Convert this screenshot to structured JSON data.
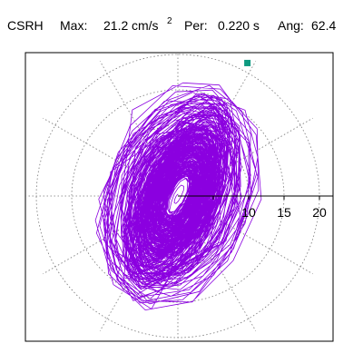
{
  "header": {
    "station": "CSRH",
    "max_label": "Max:",
    "max_value": "21.2",
    "max_unit": "cm/s",
    "max_unit_exp": "2",
    "per_label": "Per:",
    "per_value": "0.220 s",
    "ang_label": "Ang:",
    "ang_value": "62.4"
  },
  "colors": {
    "trace": "#8B00E0",
    "marker": "#0E9A80",
    "grid": "#777777",
    "axis": "#000000"
  },
  "chart_data": {
    "type": "polar-orbit",
    "rings": [
      5,
      10,
      15,
      20
    ],
    "tick_labels": [
      "10",
      "15",
      "20"
    ],
    "radial_spokes_deg": [
      30,
      60,
      90,
      120,
      150,
      180,
      210,
      240,
      270,
      300,
      330
    ],
    "max_amplitude": 21.2,
    "max_angle_deg": 62.4,
    "range": [
      -23,
      23
    ],
    "grid": "dotted",
    "trace_seed": 20240,
    "trace_points": 2600
  }
}
